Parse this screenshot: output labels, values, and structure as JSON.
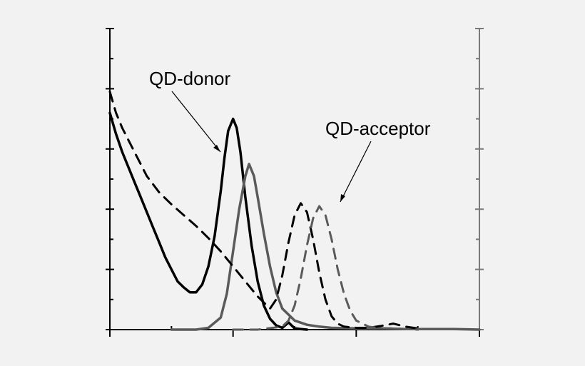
{
  "chart_data": {
    "type": "line",
    "title": "",
    "xlabel": "",
    "ylabel": "",
    "y2label": "",
    "xlim": [
      0,
      3
    ],
    "ylim": [
      0,
      5
    ],
    "y2lim": [
      0,
      5
    ],
    "x_ticks_major": [
      0,
      1,
      2,
      3
    ],
    "x_ticks_minor": [
      0.5,
      1.5,
      2.5
    ],
    "y_ticks": [
      0,
      1,
      2,
      3,
      4,
      5
    ],
    "y_ticks_minor": [
      0.5,
      1.5,
      2.5,
      3.5,
      4.5
    ],
    "tick_labels_visible": false,
    "grid": false,
    "legend": "none",
    "annotations": [
      {
        "text": "QD-donor",
        "points_to_series": "donor-absorption"
      },
      {
        "text": "QD-acceptor",
        "points_to_series": "acceptor-emission"
      }
    ],
    "series": [
      {
        "key": "donor-absorption",
        "axis": "left",
        "style": "solid",
        "color": "#000000",
        "x": [
          0,
          0.05,
          0.1,
          0.15,
          0.2,
          0.25,
          0.3,
          0.35,
          0.4,
          0.45,
          0.5,
          0.55,
          0.6,
          0.65,
          0.7,
          0.75,
          0.8,
          0.85,
          0.9,
          0.93,
          0.96,
          1.0,
          1.03,
          1.06,
          1.1,
          1.15,
          1.2,
          1.25,
          1.3,
          1.35,
          1.4,
          1.45,
          1.5,
          1.55,
          1.6
        ],
        "y": [
          3.6,
          3.25,
          2.95,
          2.7,
          2.45,
          2.2,
          1.95,
          1.7,
          1.45,
          1.2,
          1.0,
          0.8,
          0.7,
          0.62,
          0.62,
          0.75,
          1.05,
          1.55,
          2.3,
          2.85,
          3.3,
          3.5,
          3.35,
          2.95,
          2.2,
          1.4,
          0.8,
          0.4,
          0.18,
          0.07,
          0.03,
          0.12,
          0.02,
          0.01,
          0.0
        ]
      },
      {
        "key": "donor-emission",
        "axis": "right",
        "style": "solid",
        "color": "#5a5a5a",
        "x": [
          0.5,
          0.7,
          0.8,
          0.9,
          0.95,
          1.0,
          1.05,
          1.1,
          1.13,
          1.17,
          1.2,
          1.25,
          1.3,
          1.35,
          1.4,
          1.5,
          1.6,
          1.7,
          1.8,
          2.0,
          2.2,
          2.4,
          2.6,
          2.8,
          3.0
        ],
        "y": [
          0.0,
          0.0,
          0.03,
          0.2,
          0.6,
          1.3,
          2.0,
          2.55,
          2.75,
          2.55,
          2.2,
          1.6,
          1.05,
          0.62,
          0.35,
          0.15,
          0.08,
          0.05,
          0.03,
          0.02,
          0.02,
          0.01,
          0.01,
          0.01,
          0.0
        ]
      },
      {
        "key": "acceptor-absorption",
        "axis": "left",
        "style": "dashed",
        "color": "#000000",
        "x": [
          0,
          0.05,
          0.1,
          0.2,
          0.3,
          0.4,
          0.5,
          0.6,
          0.7,
          0.8,
          0.9,
          1.0,
          1.1,
          1.2,
          1.3,
          1.35,
          1.4,
          1.45,
          1.5,
          1.55,
          1.6,
          1.65,
          1.7,
          1.75,
          1.8,
          1.85,
          1.9,
          2.0,
          2.1,
          2.2,
          2.3,
          2.4,
          2.5
        ],
        "y": [
          3.95,
          3.6,
          3.35,
          2.95,
          2.55,
          2.28,
          2.08,
          1.9,
          1.72,
          1.52,
          1.3,
          1.05,
          0.8,
          0.55,
          0.35,
          0.5,
          0.9,
          1.45,
          1.9,
          2.1,
          1.95,
          1.5,
          0.95,
          0.5,
          0.22,
          0.1,
          0.05,
          0.03,
          0.03,
          0.06,
          0.1,
          0.05,
          0.02
        ]
      },
      {
        "key": "acceptor-emission",
        "axis": "right",
        "style": "dashed",
        "color": "#5a5a5a",
        "x": [
          1.0,
          1.2,
          1.4,
          1.45,
          1.5,
          1.55,
          1.6,
          1.65,
          1.7,
          1.75,
          1.8,
          1.85,
          1.9,
          1.95,
          2.0,
          2.1,
          2.2,
          2.3,
          2.4,
          2.5
        ],
        "y": [
          0.0,
          0.0,
          0.05,
          0.15,
          0.4,
          0.85,
          1.4,
          1.85,
          2.05,
          1.9,
          1.5,
          1.0,
          0.6,
          0.32,
          0.15,
          0.05,
          0.02,
          0.02,
          0.01,
          0.0
        ]
      }
    ]
  }
}
